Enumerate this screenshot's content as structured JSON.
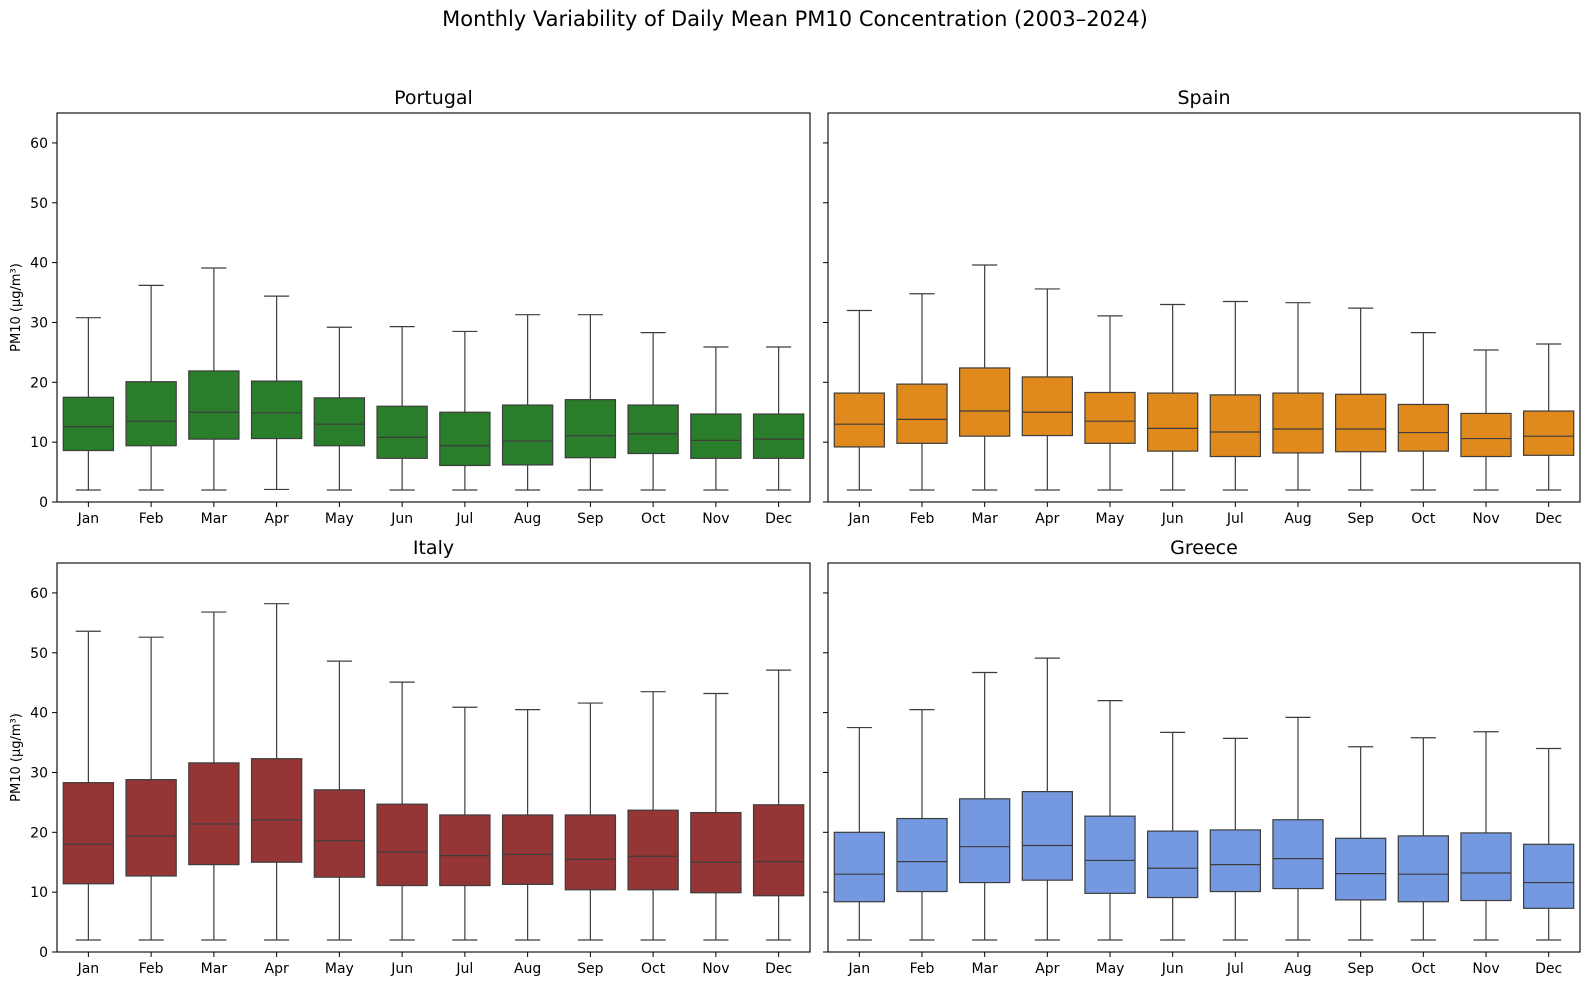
{
  "figure": {
    "title": "Monthly Variability of Daily Mean PM10 Concentration (2003–2024)"
  },
  "chart_data": [
    {
      "type": "boxplot",
      "title": "Portugal",
      "color": "#2a7d2a",
      "ylabel": "PM10 (µg/m³)",
      "ylim": [
        0,
        65
      ],
      "yticks": [
        0,
        10,
        20,
        30,
        40,
        50,
        60
      ],
      "categories": [
        "Jan",
        "Feb",
        "Mar",
        "Apr",
        "May",
        "Jun",
        "Jul",
        "Aug",
        "Sep",
        "Oct",
        "Nov",
        "Dec"
      ],
      "boxes": [
        {
          "whislo": 2,
          "q1": 8.6,
          "med": 12.6,
          "q3": 17.5,
          "whishi": 30.8
        },
        {
          "whislo": 2,
          "q1": 9.4,
          "med": 13.5,
          "q3": 20.1,
          "whishi": 36.2
        },
        {
          "whislo": 2,
          "q1": 10.5,
          "med": 15.0,
          "q3": 21.9,
          "whishi": 39.1
        },
        {
          "whislo": 2.1,
          "q1": 10.6,
          "med": 14.9,
          "q3": 20.2,
          "whishi": 34.4
        },
        {
          "whislo": 2,
          "q1": 9.4,
          "med": 13.0,
          "q3": 17.4,
          "whishi": 29.2
        },
        {
          "whislo": 2,
          "q1": 7.3,
          "med": 10.8,
          "q3": 16.0,
          "whishi": 29.3
        },
        {
          "whislo": 2,
          "q1": 6.1,
          "med": 9.4,
          "q3": 15.0,
          "whishi": 28.5
        },
        {
          "whislo": 2,
          "q1": 6.2,
          "med": 10.2,
          "q3": 16.2,
          "whishi": 31.3
        },
        {
          "whislo": 2,
          "q1": 7.4,
          "med": 11.1,
          "q3": 17.1,
          "whishi": 31.3
        },
        {
          "whislo": 2,
          "q1": 8.1,
          "med": 11.4,
          "q3": 16.2,
          "whishi": 28.3
        },
        {
          "whislo": 2,
          "q1": 7.3,
          "med": 10.3,
          "q3": 14.7,
          "whishi": 25.9
        },
        {
          "whislo": 2,
          "q1": 7.3,
          "med": 10.5,
          "q3": 14.7,
          "whishi": 25.9
        }
      ]
    },
    {
      "type": "boxplot",
      "title": "Spain",
      "color": "#e08a1e",
      "ylabel": "",
      "ylim": [
        0,
        65
      ],
      "yticks": [
        0,
        10,
        20,
        30,
        40,
        50,
        60
      ],
      "categories": [
        "Jan",
        "Feb",
        "Mar",
        "Apr",
        "May",
        "Jun",
        "Jul",
        "Aug",
        "Sep",
        "Oct",
        "Nov",
        "Dec"
      ],
      "boxes": [
        {
          "whislo": 2,
          "q1": 9.2,
          "med": 13.0,
          "q3": 18.2,
          "whishi": 32.0
        },
        {
          "whislo": 2,
          "q1": 9.8,
          "med": 13.8,
          "q3": 19.7,
          "whishi": 34.8
        },
        {
          "whislo": 2,
          "q1": 11.0,
          "med": 15.2,
          "q3": 22.4,
          "whishi": 39.6
        },
        {
          "whislo": 2,
          "q1": 11.1,
          "med": 15.0,
          "q3": 20.9,
          "whishi": 35.6
        },
        {
          "whislo": 2,
          "q1": 9.8,
          "med": 13.5,
          "q3": 18.3,
          "whishi": 31.1
        },
        {
          "whislo": 2,
          "q1": 8.5,
          "med": 12.3,
          "q3": 18.2,
          "whishi": 33.0
        },
        {
          "whislo": 2,
          "q1": 7.6,
          "med": 11.7,
          "q3": 17.9,
          "whishi": 33.5
        },
        {
          "whislo": 2,
          "q1": 8.2,
          "med": 12.2,
          "q3": 18.2,
          "whishi": 33.3
        },
        {
          "whislo": 2,
          "q1": 8.4,
          "med": 12.2,
          "q3": 18.0,
          "whishi": 32.4
        },
        {
          "whislo": 2,
          "q1": 8.5,
          "med": 11.6,
          "q3": 16.3,
          "whishi": 28.3
        },
        {
          "whislo": 2,
          "q1": 7.6,
          "med": 10.6,
          "q3": 14.8,
          "whishi": 25.4
        },
        {
          "whislo": 2,
          "q1": 7.8,
          "med": 11.0,
          "q3": 15.2,
          "whishi": 26.4
        }
      ]
    },
    {
      "type": "boxplot",
      "title": "Italy",
      "color": "#963535",
      "ylabel": "PM10 (µg/m³)",
      "ylim": [
        0,
        65
      ],
      "yticks": [
        0,
        10,
        20,
        30,
        40,
        50,
        60
      ],
      "categories": [
        "Jan",
        "Feb",
        "Mar",
        "Apr",
        "May",
        "Jun",
        "Jul",
        "Aug",
        "Sep",
        "Oct",
        "Nov",
        "Dec"
      ],
      "boxes": [
        {
          "whislo": 2,
          "q1": 11.4,
          "med": 18.0,
          "q3": 28.3,
          "whishi": 53.6
        },
        {
          "whislo": 2,
          "q1": 12.7,
          "med": 19.4,
          "q3": 28.8,
          "whishi": 52.6
        },
        {
          "whislo": 2,
          "q1": 14.6,
          "med": 21.4,
          "q3": 31.6,
          "whishi": 56.8
        },
        {
          "whislo": 2,
          "q1": 15.0,
          "med": 22.1,
          "q3": 32.3,
          "whishi": 58.2
        },
        {
          "whislo": 2,
          "q1": 12.5,
          "med": 18.6,
          "q3": 27.1,
          "whishi": 48.6
        },
        {
          "whislo": 2,
          "q1": 11.1,
          "med": 16.7,
          "q3": 24.7,
          "whishi": 45.1
        },
        {
          "whislo": 2,
          "q1": 11.1,
          "med": 16.1,
          "q3": 22.9,
          "whishi": 40.9
        },
        {
          "whislo": 2,
          "q1": 11.3,
          "med": 16.3,
          "q3": 22.9,
          "whishi": 40.5
        },
        {
          "whislo": 2,
          "q1": 10.4,
          "med": 15.5,
          "q3": 22.9,
          "whishi": 41.6
        },
        {
          "whislo": 2,
          "q1": 10.4,
          "med": 16.0,
          "q3": 23.7,
          "whishi": 43.5
        },
        {
          "whislo": 2,
          "q1": 9.9,
          "med": 15.0,
          "q3": 23.3,
          "whishi": 43.2
        },
        {
          "whislo": 2,
          "q1": 9.4,
          "med": 15.1,
          "q3": 24.6,
          "whishi": 47.1
        }
      ]
    },
    {
      "type": "boxplot",
      "title": "Greece",
      "color": "#7499e0",
      "ylabel": "",
      "ylim": [
        0,
        65
      ],
      "yticks": [
        0,
        10,
        20,
        30,
        40,
        50,
        60
      ],
      "categories": [
        "Jan",
        "Feb",
        "Mar",
        "Apr",
        "May",
        "Jun",
        "Jul",
        "Aug",
        "Sep",
        "Oct",
        "Nov",
        "Dec"
      ],
      "boxes": [
        {
          "whislo": 2,
          "q1": 8.4,
          "med": 13.0,
          "q3": 20.0,
          "whishi": 37.5
        },
        {
          "whislo": 2,
          "q1": 10.1,
          "med": 15.1,
          "q3": 22.3,
          "whishi": 40.5
        },
        {
          "whislo": 2,
          "q1": 11.6,
          "med": 17.6,
          "q3": 25.6,
          "whishi": 46.7
        },
        {
          "whislo": 2,
          "q1": 12.0,
          "med": 17.8,
          "q3": 26.8,
          "whishi": 49.1
        },
        {
          "whislo": 2,
          "q1": 9.8,
          "med": 15.3,
          "q3": 22.7,
          "whishi": 42.0
        },
        {
          "whislo": 2,
          "q1": 9.1,
          "med": 14.0,
          "q3": 20.2,
          "whishi": 36.7
        },
        {
          "whislo": 2,
          "q1": 10.1,
          "med": 14.6,
          "q3": 20.4,
          "whishi": 35.7
        },
        {
          "whislo": 2,
          "q1": 10.6,
          "med": 15.6,
          "q3": 22.1,
          "whishi": 39.2
        },
        {
          "whislo": 2,
          "q1": 8.7,
          "med": 13.1,
          "q3": 19.0,
          "whishi": 34.3
        },
        {
          "whislo": 2,
          "q1": 8.4,
          "med": 13.0,
          "q3": 19.4,
          "whishi": 35.8
        },
        {
          "whislo": 2,
          "q1": 8.6,
          "med": 13.2,
          "q3": 19.9,
          "whishi": 36.8
        },
        {
          "whislo": 2,
          "q1": 7.3,
          "med": 11.6,
          "q3": 18.0,
          "whishi": 34.0
        }
      ]
    }
  ]
}
